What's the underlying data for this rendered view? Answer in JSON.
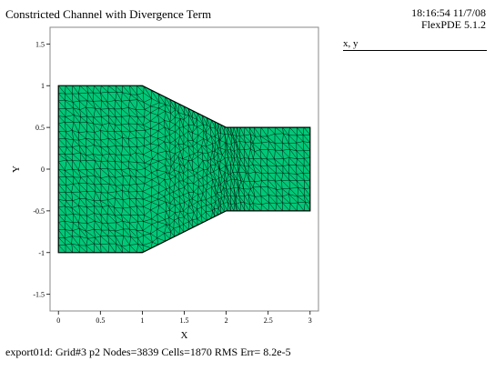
{
  "header": {
    "title": "Constricted Channel with Divergence Term",
    "time": "18:16:54 11/7/08",
    "version": "FlexPDE 5.1.2"
  },
  "legend": {
    "label": "x, y"
  },
  "plot": {
    "xlabel": "X",
    "ylabel": "Y",
    "xlim": [
      -0.1,
      3.1
    ],
    "ylim": [
      -1.7,
      1.7
    ],
    "xticks": [
      "0",
      "0.5",
      "1",
      "1.5",
      "2",
      "2.5",
      "3"
    ],
    "yticks": [
      "1.5",
      "1",
      "0.5",
      "0",
      "-0.5",
      "-1",
      "-1.5"
    ],
    "domain_outline": [
      [
        0,
        1
      ],
      [
        1,
        1
      ],
      [
        2,
        0.5
      ],
      [
        3,
        0.5
      ],
      [
        3,
        -0.5
      ],
      [
        2,
        -0.5
      ],
      [
        1,
        -1
      ],
      [
        0,
        -1
      ]
    ],
    "mesh_fill": "#00c878",
    "mesh_line": "#000000"
  },
  "footer": {
    "stats": "export01d:  Grid#3  p2  Nodes=3839 Cells=1870 RMS Err= 8.2e-5"
  }
}
